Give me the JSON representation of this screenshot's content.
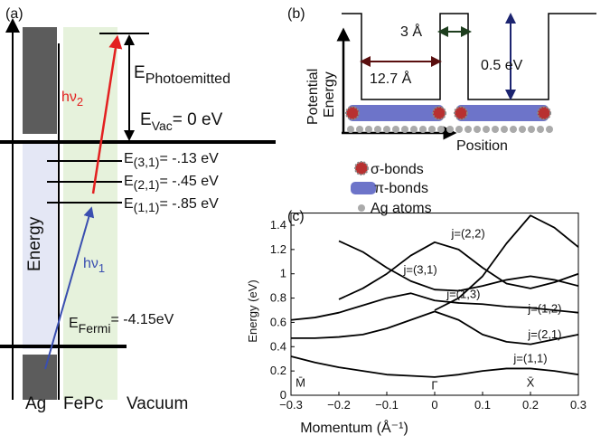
{
  "panel_a": {
    "label": "(a)",
    "axis_label": "Energy",
    "photoemitted": {
      "symbol": "E",
      "sub": "Photoemitted"
    },
    "vacuum_level": {
      "symbol": "E",
      "sub": "Vac",
      "value": "= 0 eV"
    },
    "levels": [
      {
        "symbol": "E",
        "sub": "(3,1)",
        "value": "= -.13 eV"
      },
      {
        "symbol": "E",
        "sub": "(2,1)",
        "value": "= -.45 eV"
      },
      {
        "symbol": "E",
        "sub": "(1,1)",
        "value": "= -.85 eV"
      }
    ],
    "fermi": {
      "symbol": "E",
      "sub": "Fermi",
      "value": "= -4.15eV"
    },
    "photon2": {
      "symbol": "hν",
      "sub": "2"
    },
    "photon1": {
      "symbol": "hν",
      "sub": "1"
    },
    "regions": [
      "Ag",
      "FePc",
      "Vacuum"
    ]
  },
  "panel_b": {
    "label": "(b)",
    "gap": "3 Å",
    "width": "12.7 Å",
    "depth": "0.5 eV",
    "y_label": [
      "Potential",
      "Energy"
    ],
    "x_label": "Position",
    "legend": [
      "σ-bonds",
      "π-bonds",
      "Ag atoms"
    ]
  },
  "chart_data": {
    "type": "line",
    "label": "(c)",
    "x_label": "Momentum (Å⁻¹)",
    "y_label": "Energy (eV)",
    "x": [
      -0.3,
      -0.25,
      -0.2,
      -0.15,
      -0.1,
      -0.05,
      0,
      0.05,
      0.1,
      0.15,
      0.2,
      0.25,
      0.3
    ],
    "series": [
      {
        "color": "#000000",
        "values": [
          0.32,
          0.27,
          0.23,
          0.2,
          0.17,
          0.16,
          0.15,
          0.17,
          0.2,
          0.22,
          0.22,
          0.2,
          0.17
        ]
      },
      {
        "color": "#000000",
        "values": [
          0.47,
          0.47,
          0.48,
          0.5,
          0.55,
          0.62,
          0.69,
          0.62,
          0.5,
          0.44,
          0.42,
          0.46,
          0.5
        ]
      },
      {
        "color": "#000000",
        "values": [
          0.62,
          0.64,
          0.68,
          0.74,
          0.8,
          0.84,
          0.78,
          0.76,
          0.75,
          0.73,
          0.72,
          0.7,
          0.68
        ]
      },
      {
        "color": "#000000",
        "values": [
          null,
          null,
          1.27,
          1.18,
          1.05,
          0.94,
          0.87,
          0.86,
          0.9,
          0.95,
          0.98,
          0.95,
          0.9
        ]
      },
      {
        "color": "#000000",
        "values": [
          null,
          null,
          0.79,
          0.88,
          1.0,
          1.15,
          1.26,
          1.2,
          1.05,
          0.92,
          0.88,
          0.93,
          1.0
        ]
      },
      {
        "color": "#000000",
        "values": [
          null,
          null,
          null,
          null,
          null,
          null,
          0.7,
          0.8,
          0.98,
          1.25,
          1.48,
          1.38,
          1.22
        ]
      }
    ],
    "annotations": [
      {
        "text": "j=(2,2)",
        "x": 0.07,
        "y": 1.3
      },
      {
        "text": "j=(3,1)",
        "x": -0.03,
        "y": 1.0
      },
      {
        "text": "j=(1,3)",
        "x": 0.06,
        "y": 0.8
      },
      {
        "text": "j=(1,2)",
        "x": 0.23,
        "y": 0.68
      },
      {
        "text": "j=(2,1)",
        "x": 0.23,
        "y": 0.47
      },
      {
        "text": "j=(1,1)",
        "x": 0.2,
        "y": 0.27
      },
      {
        "text": "M̄",
        "x": -0.28,
        "y": 0.07
      },
      {
        "text": "Γ",
        "x": 0,
        "y": 0.05
      },
      {
        "text": "X̄",
        "x": 0.2,
        "y": 0.07
      }
    ],
    "xlim": [
      -0.3,
      0.3
    ],
    "ylim": [
      0,
      1.5
    ],
    "xticks": [
      {
        "value": -0.3,
        "label": "−0.3"
      },
      {
        "value": -0.2,
        "label": "−0.2"
      },
      {
        "value": -0.1,
        "label": "−0.1"
      },
      0,
      0.1,
      0.2,
      0.3
    ],
    "yticks": [
      0,
      0.2,
      0.4,
      0.6,
      0.8,
      1,
      1.2,
      1.4
    ]
  }
}
